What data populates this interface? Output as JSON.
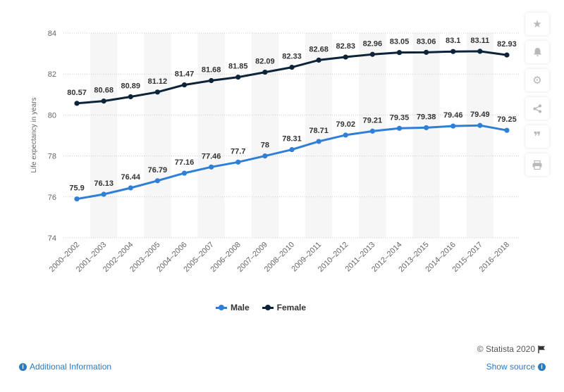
{
  "chart_data": {
    "type": "line",
    "categories": [
      "2000-2002",
      "2001-2003",
      "2002-2004",
      "2003-2005",
      "2004-2006",
      "2005-2007",
      "2006-2008",
      "2007-2009",
      "2008-2010",
      "2009-2011",
      "2010-2012",
      "2011-2013",
      "2012-2014",
      "2013-2015",
      "2014-2016",
      "2015-2017",
      "2016-2018"
    ],
    "series": [
      {
        "name": "Male",
        "color": "#2f7ed8",
        "values": [
          75.9,
          76.13,
          76.44,
          76.79,
          77.16,
          77.46,
          77.7,
          78,
          78.31,
          78.71,
          79.02,
          79.21,
          79.35,
          79.38,
          79.46,
          79.49,
          79.25
        ],
        "labels": [
          "75.9",
          "76.13",
          "76.44",
          "76.79",
          "77.16",
          "77.46",
          "77.7",
          "78",
          "78.31",
          "78.71",
          "79.02",
          "79.21",
          "79.35",
          "79.38",
          "79.46",
          "79.49",
          "79.25"
        ]
      },
      {
        "name": "Female",
        "color": "#0d233a",
        "values": [
          80.57,
          80.68,
          80.89,
          81.12,
          81.47,
          81.68,
          81.85,
          82.09,
          82.33,
          82.68,
          82.83,
          82.96,
          83.05,
          83.06,
          83.1,
          83.11,
          82.93
        ],
        "labels": [
          "80.57",
          "80.68",
          "80.89",
          "81.12",
          "81.47",
          "81.68",
          "81.85",
          "82.09",
          "82.33",
          "82.68",
          "82.83",
          "82.96",
          "83.05",
          "83.06",
          "83.1",
          "83.11",
          "82.93"
        ]
      }
    ],
    "ylabel": "Life expectancy in years",
    "ylim": [
      74,
      84
    ],
    "yticks": [
      "74",
      "76",
      "78",
      "80",
      "82",
      "84"
    ],
    "grid": true,
    "legend_position": "bottom-center"
  },
  "legend": {
    "male": "Male",
    "female": "Female"
  },
  "sidebar": {
    "icons": [
      "star-icon",
      "bell-icon",
      "gear-icon",
      "share-icon",
      "quote-icon",
      "print-icon"
    ]
  },
  "footer": {
    "credit": "© Statista 2020",
    "additional_info": "Additional Information",
    "show_source": "Show source"
  }
}
